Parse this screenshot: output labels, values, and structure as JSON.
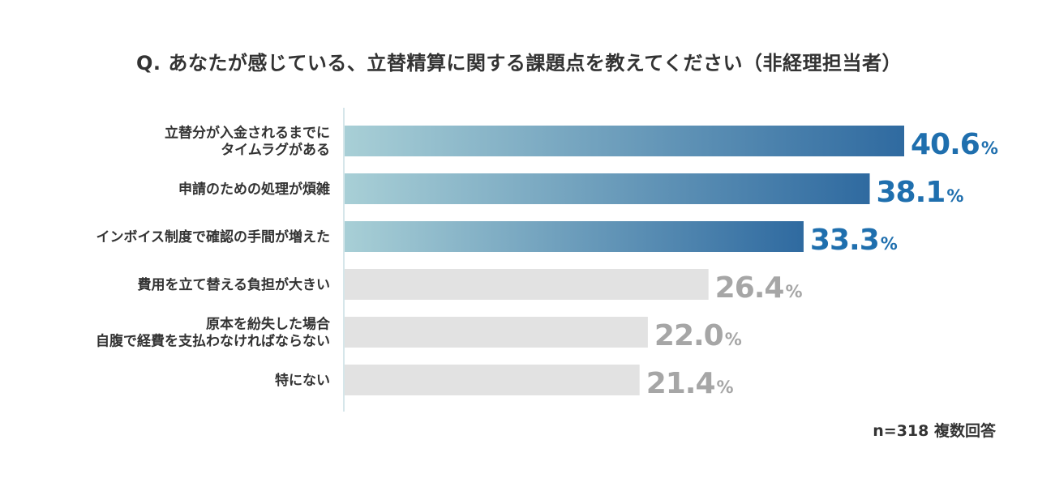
{
  "chart_data": {
    "type": "bar",
    "orientation": "horizontal",
    "title": "Q. あなたが感じている、立替精算に関する課題点を教えてください（非経理担当者）",
    "categories": [
      [
        "立替分が入金されるまでに",
        "タイムラグがある"
      ],
      [
        "申請のための処理が煩雑"
      ],
      [
        "インボイス制度で確認の手間が増えた"
      ],
      [
        "費用を立て替える負担が大きい"
      ],
      [
        "原本を紛失した場合",
        "自腹で経費を支払わなければならない"
      ],
      [
        "特にない"
      ]
    ],
    "values": [
      40.6,
      38.1,
      33.3,
      26.4,
      22.0,
      21.4
    ],
    "value_labels": [
      "40.6",
      "38.1",
      "33.3",
      "26.4",
      "22.0",
      "21.4"
    ],
    "unit": "%",
    "highlighted": [
      true,
      true,
      true,
      false,
      false,
      false
    ],
    "xlim": [
      0,
      40.6
    ],
    "note": "n=318 複数回答",
    "colors": {
      "highlight_start": "#a8cfd6",
      "highlight_end": "#2f6aa0",
      "highlight_text": "#1f6fae",
      "muted_bar": "#e2e2e2",
      "muted_text": "#a6a6a6",
      "axis": "#c8dde3"
    }
  }
}
